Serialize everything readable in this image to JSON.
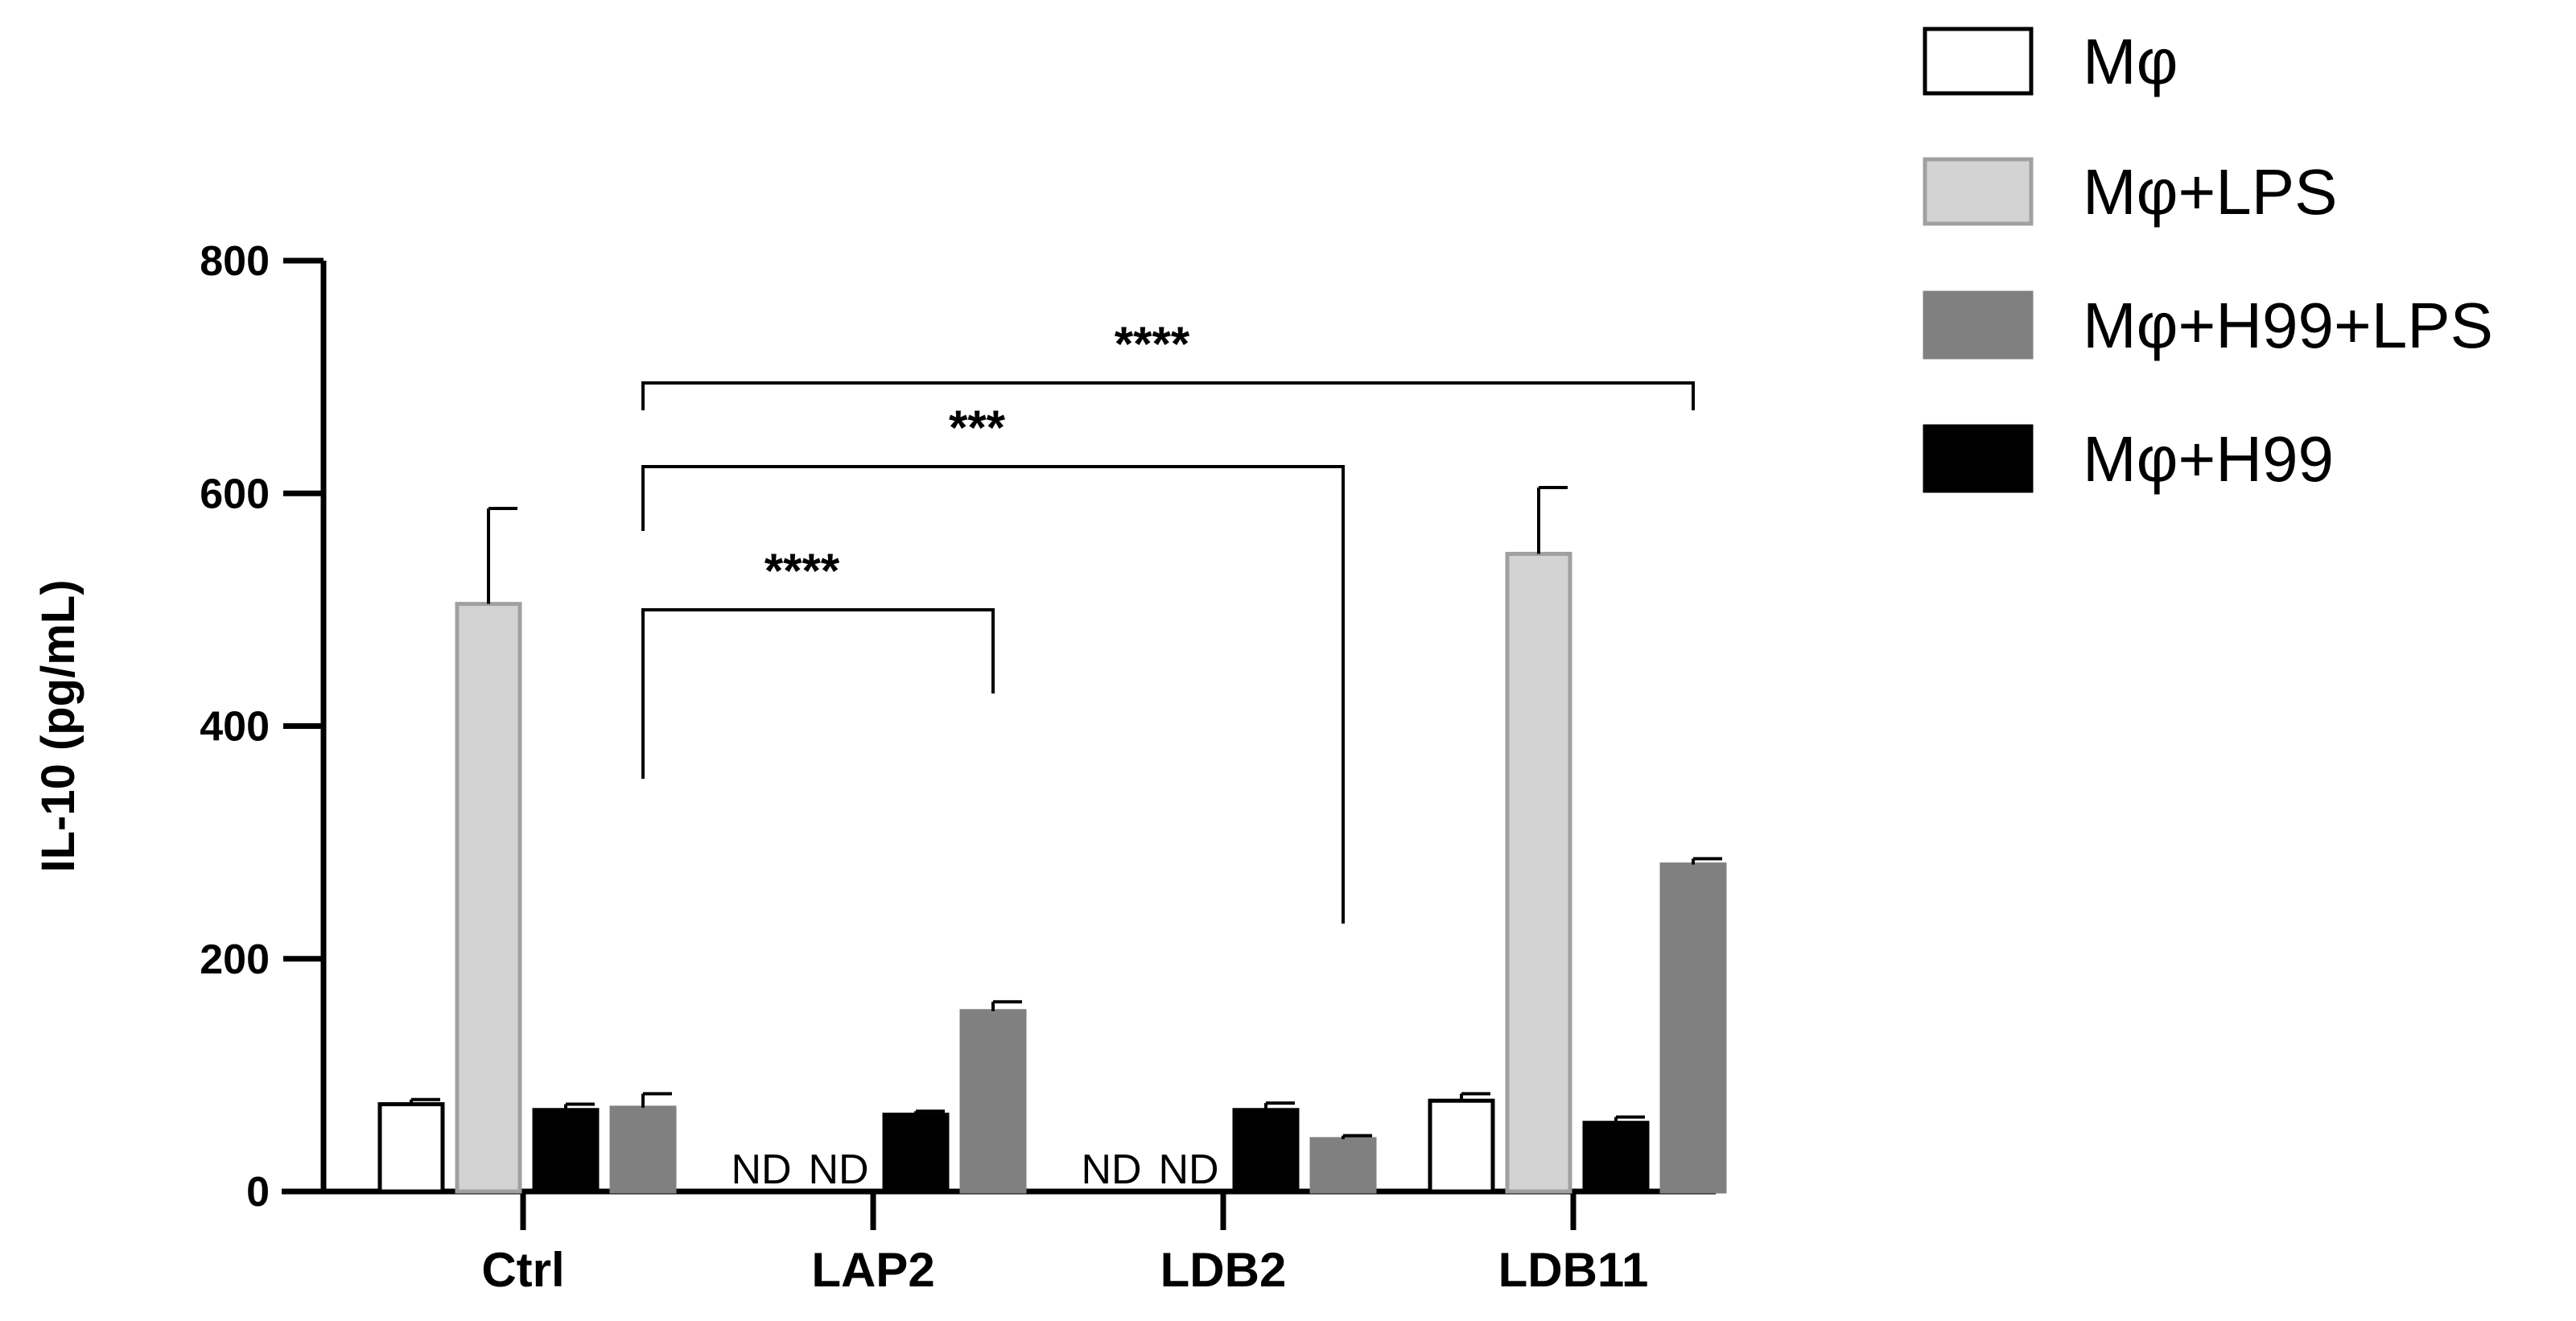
{
  "chart_data": {
    "type": "bar",
    "title": "",
    "xlabel": "",
    "ylabel": "IL-10 (pg/mL)",
    "ylim": [
      0,
      800
    ],
    "yticks": [
      "0",
      "200",
      "400",
      "600",
      "800"
    ],
    "grid": false,
    "legend_position": "top-right",
    "categories": [
      "Ctrl",
      "LAP2",
      "LDB2",
      "LDB11"
    ],
    "series": [
      {
        "name": "Mφ",
        "color": "#ffffff",
        "stroke": "#000000",
        "values": [
          75,
          null,
          null,
          78
        ],
        "errors": [
          4,
          null,
          null,
          6
        ],
        "labels": [
          "",
          "ND",
          "ND",
          ""
        ]
      },
      {
        "name": "Mφ+LPS",
        "color": "#d3d3d3",
        "stroke": "#a0a0a0",
        "values": [
          505,
          null,
          null,
          548
        ],
        "errors": [
          82,
          null,
          null,
          57
        ],
        "labels": [
          "",
          "ND",
          "ND",
          ""
        ]
      },
      {
        "name": "Mφ+H99",
        "color": "#000000",
        "stroke": "#000000",
        "values": [
          70,
          66,
          70,
          59
        ],
        "errors": [
          5,
          3,
          6,
          5
        ],
        "labels": [
          "",
          "",
          "",
          ""
        ]
      },
      {
        "name": "Mφ+H99+LPS",
        "color": "#808080",
        "stroke": "#808080",
        "values": [
          72,
          155,
          45,
          281
        ],
        "errors": [
          12,
          8,
          3,
          5
        ],
        "labels": [
          "",
          "",
          "",
          ""
        ]
      }
    ],
    "legend_order": [
      "Mφ",
      "Mφ+LPS",
      "Mφ+H99+LPS",
      "Mφ+H99"
    ],
    "annotations": [
      {
        "from": "Ctrl",
        "to": "LAP2",
        "label": "****"
      },
      {
        "from": "Ctrl",
        "to": "LDB2",
        "label": "***"
      },
      {
        "from": "Ctrl",
        "to": "LDB11",
        "label": "****"
      }
    ]
  }
}
